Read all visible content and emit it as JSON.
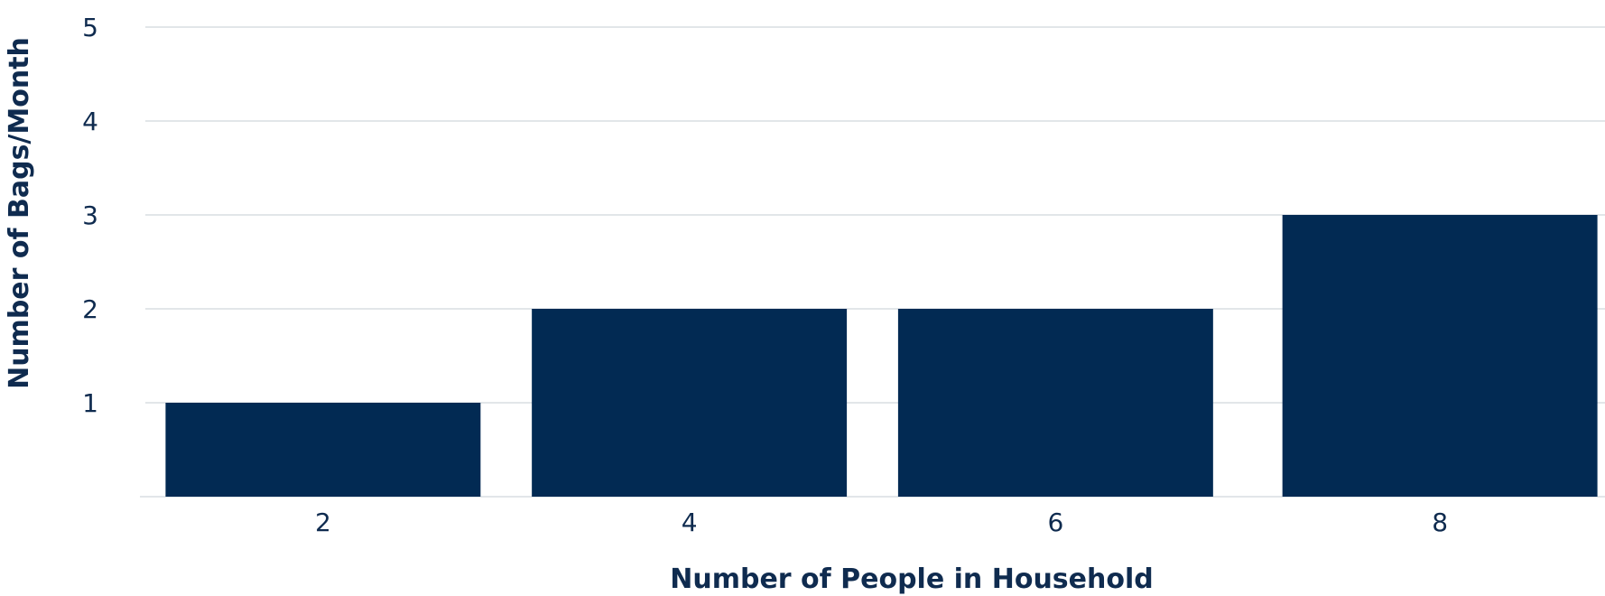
{
  "chart_data": {
    "type": "bar",
    "title": "",
    "xlabel": "Number of People in Household",
    "ylabel": "Number of Bags/Month",
    "categories": [
      "2",
      "4",
      "6",
      "8"
    ],
    "values": [
      1,
      2,
      2,
      3
    ],
    "yticks": [
      "1",
      "2",
      "3",
      "4",
      "5"
    ],
    "ylim": [
      0,
      5
    ],
    "grid": true,
    "legend": "none",
    "colors": {
      "bar": "#022a53",
      "text": "#0f2b4f",
      "grid": "#d9dde2"
    }
  }
}
